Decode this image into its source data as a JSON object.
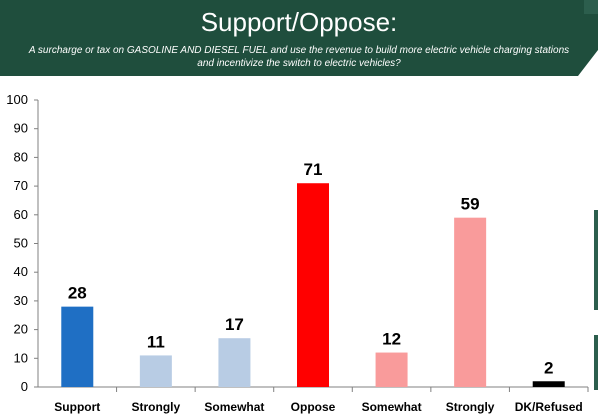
{
  "header": {
    "title": "Support/Oppose:",
    "subtitle": "A surcharge or tax on GASOLINE AND DIESEL FUEL and use the revenue to build more electric vehicle charging stations and incentivize the switch to electric vehicles?"
  },
  "chart_data": {
    "type": "bar",
    "categories": [
      "Support",
      "Strongly",
      "Somewhat",
      "Oppose",
      "Somewhat",
      "Strongly",
      "DK/Refused"
    ],
    "values": [
      28,
      11,
      17,
      71,
      12,
      59,
      2
    ],
    "bar_colors": [
      "#1f6fc4",
      "#b8cce4",
      "#b8cce4",
      "#ff0000",
      "#f99b9b",
      "#f99b9b",
      "#000000"
    ],
    "title": "Support/Oppose:",
    "subtitle": "A surcharge or tax on GASOLINE AND DIESEL FUEL and use the revenue to build more electric vehicle charging stations and incentivize the switch to electric vehicles?",
    "xlabel": "",
    "ylabel": "",
    "ylim": [
      0,
      100
    ],
    "yticks": [
      0,
      10,
      20,
      30,
      40,
      50,
      60,
      70,
      80,
      90,
      100
    ],
    "grid": false,
    "legend": "none"
  }
}
